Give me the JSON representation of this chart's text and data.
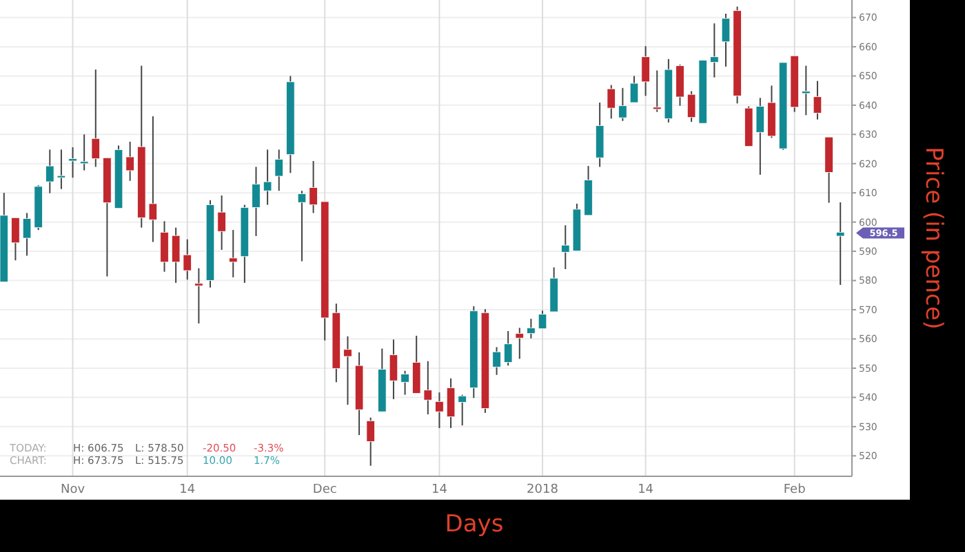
{
  "chart_data": {
    "type": "candlestick",
    "xlabel": "Days",
    "ylabel": "Price (in pence)",
    "categories": [
      null,
      null,
      null,
      null,
      null,
      null,
      "Nov",
      null,
      null,
      null,
      null,
      null,
      null,
      null,
      null,
      null,
      "14",
      null,
      null,
      null,
      null,
      null,
      null,
      null,
      null,
      null,
      null,
      null,
      "Dec",
      null,
      null,
      null,
      null,
      null,
      null,
      null,
      null,
      null,
      "14",
      null,
      null,
      null,
      null,
      null,
      null,
      null,
      null,
      "2018",
      null,
      null,
      null,
      null,
      null,
      null,
      null,
      null,
      "14",
      null,
      null,
      null,
      null,
      null,
      null,
      null,
      null,
      null,
      null,
      null,
      null,
      "Feb",
      null,
      null,
      null,
      null
    ],
    "ohlc": [
      [
        579.5,
        610,
        579.5,
        602.3
      ],
      [
        601.5,
        601.5,
        586.9,
        592.9
      ],
      [
        594.5,
        603.1,
        588.5,
        601.2
      ],
      [
        598.1,
        612.6,
        597.3,
        612.2
      ],
      [
        613.8,
        624.8,
        609.9,
        619.2
      ],
      [
        615.5,
        624.8,
        611.3,
        615.9
      ],
      [
        620.9,
        625.6,
        615.2,
        621.7
      ],
      [
        620,
        630,
        617.7,
        620.7
      ],
      [
        628.6,
        652.2,
        618.9,
        621.7
      ],
      [
        622,
        622,
        581.4,
        606.6
      ],
      [
        604.7,
        626.2,
        604.7,
        624.8
      ],
      [
        622.3,
        627.5,
        614.1,
        617.6
      ],
      [
        625.8,
        653.5,
        598.1,
        601.5
      ],
      [
        606.3,
        636.2,
        593.2,
        600.8
      ],
      [
        596.5,
        600.3,
        583,
        586.3
      ],
      [
        595.4,
        598.1,
        579.2,
        586.3
      ],
      [
        588.8,
        594.1,
        580.3,
        583.4
      ],
      [
        579,
        584.2,
        565.3,
        578.2
      ],
      [
        580,
        607.5,
        577.6,
        605.9
      ],
      [
        603.4,
        609.1,
        590.5,
        596.8
      ],
      [
        587.7,
        597.3,
        581.1,
        586.3
      ],
      [
        588.2,
        605.9,
        579.2,
        605
      ],
      [
        605,
        618.9,
        595.2,
        613
      ],
      [
        610.7,
        624.8,
        605.9,
        613.8
      ],
      [
        615.7,
        624.8,
        610.7,
        621.5
      ],
      [
        623.1,
        650,
        616.8,
        648
      ],
      [
        606.7,
        610.7,
        586.6,
        609.7
      ],
      [
        611.8,
        620.9,
        603.1,
        605.9
      ],
      [
        607,
        607,
        559.5,
        567.2
      ],
      [
        569,
        572.1,
        545.2,
        549.9
      ],
      [
        556.4,
        560.9,
        537.5,
        554
      ],
      [
        550.9,
        555.4,
        527.1,
        535.8
      ],
      [
        532,
        533.1,
        516.6,
        524.9
      ],
      [
        535.1,
        556.7,
        535.1,
        549.6
      ],
      [
        554.6,
        559.8,
        539.4,
        545.7
      ],
      [
        545.2,
        549.1,
        540.9,
        548
      ],
      [
        552,
        561.1,
        541.4,
        541.4
      ],
      [
        542.5,
        552.4,
        534.2,
        539.1
      ],
      [
        538.6,
        541.7,
        529.5,
        535.1
      ],
      [
        543.3,
        546.5,
        529.5,
        533.4
      ],
      [
        538.3,
        540.9,
        530.4,
        540.5
      ],
      [
        543.3,
        571.2,
        539.8,
        569.6
      ],
      [
        569,
        570.2,
        534.7,
        536.2
      ],
      [
        550.4,
        557.2,
        547.7,
        555.6
      ],
      [
        552,
        562.7,
        550.9,
        558.3
      ],
      [
        561.9,
        563.8,
        553.2,
        560.3
      ],
      [
        561.9,
        566.9,
        560.2,
        563.8
      ],
      [
        563.5,
        569.7,
        563.5,
        568.5
      ],
      [
        569.3,
        584.5,
        569.3,
        580.8
      ],
      [
        589.7,
        598.9,
        583.9,
        592.1
      ],
      [
        590.1,
        606.3,
        590.1,
        604.4
      ],
      [
        602.3,
        619.2,
        602.3,
        614.4
      ],
      [
        622,
        640.9,
        618.9,
        633
      ],
      [
        645.6,
        646.9,
        635.4,
        639
      ],
      [
        635.7,
        645.9,
        634.6,
        639.8
      ],
      [
        640.9,
        650,
        640.9,
        647.5
      ],
      [
        656.6,
        660.2,
        643.2,
        648
      ],
      [
        639.3,
        651.9,
        637.7,
        638.8
      ],
      [
        635.4,
        655.8,
        634.1,
        652.2
      ],
      [
        653.5,
        653.9,
        639.8,
        642.8
      ],
      [
        643.7,
        644.8,
        634.3,
        635.8
      ],
      [
        633.8,
        655.4,
        633.8,
        655.4
      ],
      [
        654.7,
        668,
        649.5,
        656.6
      ],
      [
        661.7,
        671.3,
        653.2,
        669.7
      ],
      [
        672.4,
        673.75,
        640.6,
        643.2
      ],
      [
        639,
        639.6,
        625.9,
        625.9
      ],
      [
        630.7,
        642.5,
        616.2,
        639.6
      ],
      [
        640.9,
        646.7,
        628.8,
        629.4
      ],
      [
        625.1,
        654.6,
        624.7,
        654.6
      ],
      [
        656.9,
        656.9,
        637.7,
        639.3
      ],
      [
        644,
        653.5,
        636.6,
        644.8
      ],
      [
        642.9,
        648.3,
        635.1,
        637.3
      ],
      [
        629.1,
        629.1,
        606.6,
        617
      ],
      [
        595.2,
        606.75,
        578.5,
        596.5
      ]
    ],
    "colors": [
      "#138a93",
      "#c1272d",
      "#138a93",
      "#138a93",
      "#138a93",
      "#138a93",
      "#138a93",
      "#138a93",
      "#c1272d",
      "#c1272d",
      "#138a93",
      "#c1272d",
      "#c1272d",
      "#c1272d",
      "#c1272d",
      "#c1272d",
      "#c1272d",
      "#c1272d",
      "#138a93",
      "#c1272d",
      "#c1272d",
      "#138a93",
      "#138a93",
      "#138a93",
      "#138a93",
      "#138a93",
      "#138a93",
      "#c1272d",
      "#c1272d",
      "#c1272d",
      "#c1272d",
      "#c1272d",
      "#c1272d",
      "#138a93",
      "#c1272d",
      "#138a93",
      "#c1272d",
      "#c1272d",
      "#c1272d",
      "#c1272d",
      "#138a93",
      "#138a93",
      "#c1272d",
      "#138a93",
      "#138a93",
      "#c1272d",
      "#138a93",
      "#138a93",
      "#138a93",
      "#138a93",
      "#138a93",
      "#138a93",
      "#138a93",
      "#c1272d",
      "#138a93",
      "#138a93",
      "#c1272d",
      "#c1272d",
      "#138a93",
      "#c1272d",
      "#c1272d",
      "#138a93",
      "#138a93",
      "#138a93",
      "#c1272d",
      "#c1272d",
      "#138a93",
      "#c1272d",
      "#138a93",
      "#c1272d",
      "#138a93",
      "#c1272d",
      "#c1272d",
      "#138a93"
    ],
    "ylim": [
      513,
      676
    ],
    "yticks": [
      520,
      530,
      540,
      550,
      560,
      570,
      580,
      590,
      600,
      610,
      620,
      630,
      640,
      650,
      660,
      670
    ],
    "grid": true,
    "annotations": [
      "TODAY:",
      "H: 606.75",
      "L: 578.50",
      "-20.50",
      "-3.3%",
      "CHART:",
      "H: 673.75",
      "L: 515.75",
      "10.00",
      "1.7%",
      "596.5"
    ]
  }
}
